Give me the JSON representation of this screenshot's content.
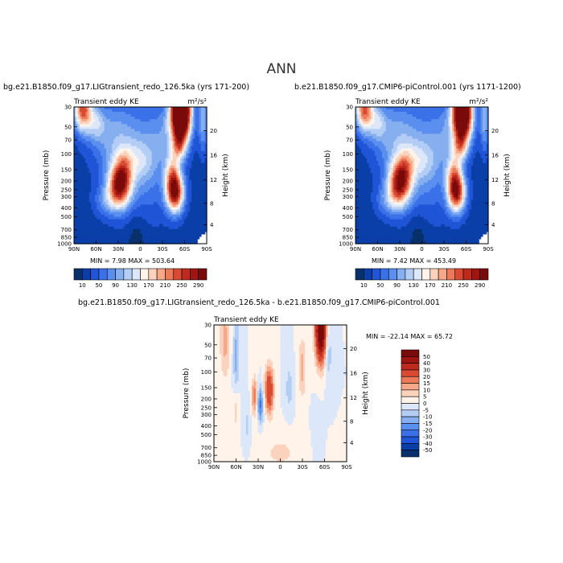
{
  "title": "ANN",
  "colors": {
    "diverging": [
      "#08306b",
      "#0b3fa8",
      "#1f55d6",
      "#3a70e8",
      "#5b8fef",
      "#86afef",
      "#b3cdf5",
      "#dce8fa",
      "#fff3ea",
      "#fbd3bd",
      "#f6a889",
      "#ec7a59",
      "#d94a33",
      "#bf2a1f",
      "#9e1512",
      "#7a0b0b"
    ]
  },
  "chart_data": [
    {
      "type": "heatmap",
      "panel": "top-left",
      "case_title": "bg.e21.B1850.f09_g17.LIGtransient_redo_126.5ka (yrs 171-200)",
      "field_label": "Transient eddy KE",
      "units": "m²/s²",
      "xlabel": "",
      "ylabel": "Pressure (mb)",
      "right_label": "Height (km)",
      "x_ticks": [
        "90N",
        "60N",
        "30N",
        "0",
        "30S",
        "60S",
        "90S"
      ],
      "y_ticks": [
        "30",
        "50",
        "70",
        "100",
        "150",
        "200",
        "250",
        "300",
        "400",
        "500",
        "700",
        "850",
        "1000"
      ],
      "right_ticks": [
        "20",
        "16",
        "12",
        "8",
        "4"
      ],
      "stats": "MIN =    7.98   MAX = 503.64",
      "levels": [
        10,
        30,
        50,
        70,
        90,
        110,
        130,
        150,
        170,
        190,
        210,
        230,
        250,
        270,
        290
      ],
      "colorbar_labels": [
        "10",
        "50",
        "90",
        "130",
        "170",
        "210",
        "250",
        "290"
      ],
      "features": [
        {
          "lat": 28,
          "p": 220,
          "value": 290
        },
        {
          "lat": -47,
          "p": 270,
          "value": 300
        },
        {
          "lat": -55,
          "p": 34,
          "value": 500
        },
        {
          "lat": 78,
          "p": 32,
          "value": 240
        }
      ]
    },
    {
      "type": "heatmap",
      "panel": "top-right",
      "case_title": "b.e21.B1850.f09_g17.CMIP6-piControl.001 (yrs 1171-1200)",
      "field_label": "Transient eddy KE",
      "units": "m²/s²",
      "xlabel": "",
      "ylabel": "Pressure (mb)",
      "right_label": "Height (km)",
      "x_ticks": [
        "90N",
        "60N",
        "30N",
        "0",
        "30S",
        "60S",
        "90S"
      ],
      "y_ticks": [
        "30",
        "50",
        "70",
        "100",
        "150",
        "200",
        "250",
        "300",
        "400",
        "500",
        "700",
        "850",
        "1000"
      ],
      "right_ticks": [
        "20",
        "16",
        "12",
        "8",
        "4"
      ],
      "stats": "MIN =    7.42   MAX = 453.49",
      "levels": [
        10,
        30,
        50,
        70,
        90,
        110,
        130,
        150,
        170,
        190,
        210,
        230,
        250,
        270,
        290
      ],
      "colorbar_labels": [
        "10",
        "50",
        "90",
        "130",
        "170",
        "210",
        "250",
        "290"
      ],
      "features": [
        {
          "lat": 30,
          "p": 210,
          "value": 280
        },
        {
          "lat": -47,
          "p": 270,
          "value": 290
        },
        {
          "lat": -55,
          "p": 34,
          "value": 450
        },
        {
          "lat": 78,
          "p": 32,
          "value": 230
        }
      ]
    },
    {
      "type": "heatmap",
      "panel": "bottom",
      "case_title": "bg.e21.B1850.f09_g17.LIGtransient_redo_126.5ka - b.e21.B1850.f09_g17.CMIP6-piControl.001",
      "field_label": "Transient eddy KE",
      "xlabel": "",
      "ylabel": "Pressure (mb)",
      "right_label": "Height (km)",
      "x_ticks": [
        "90N",
        "60N",
        "30N",
        "0",
        "30S",
        "60S",
        "90S"
      ],
      "y_ticks": [
        "30",
        "50",
        "70",
        "100",
        "150",
        "200",
        "250",
        "300",
        "400",
        "500",
        "700",
        "850",
        "1000"
      ],
      "right_ticks": [
        "20",
        "16",
        "12",
        "8",
        "4"
      ],
      "stats": "MIN = -22.14   MAX =  65.72",
      "levels": [
        -50,
        -40,
        -30,
        -20,
        -15,
        -10,
        -5,
        0,
        5,
        10,
        15,
        20,
        30,
        40,
        50
      ],
      "colorbar_labels": [
        "50",
        "40",
        "30",
        "20",
        "15",
        "10",
        "5",
        "0",
        "-5",
        "-10",
        "-15",
        "-20",
        "-30",
        "-40",
        "-50"
      ],
      "features": [
        {
          "lat": 15,
          "p": 160,
          "value": 30
        },
        {
          "lat": 35,
          "p": 190,
          "value": 18
        },
        {
          "lat": 27,
          "p": 230,
          "value": -22
        },
        {
          "lat": -55,
          "p": 35,
          "value": 65
        },
        {
          "lat": 60,
          "p": 70,
          "value": -12
        }
      ]
    }
  ]
}
